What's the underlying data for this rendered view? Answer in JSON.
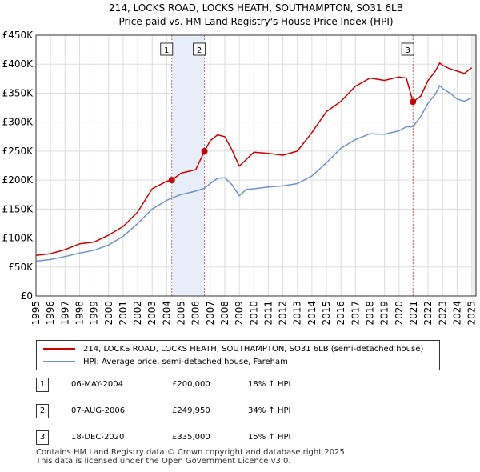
{
  "chart_data": {
    "type": "line",
    "title": "214, LOCKS ROAD, LOCKS HEATH, SOUTHAMPTON, SO31 6LB",
    "subtitle": "Price paid vs. HM Land Registry's House Price Index (HPI)",
    "xlabel": "",
    "ylabel": "",
    "xlim": [
      1995,
      2025.3
    ],
    "ylim": [
      0,
      450000
    ],
    "y_ticks": [
      {
        "value": 0,
        "label": "£0"
      },
      {
        "value": 50000,
        "label": "£50K"
      },
      {
        "value": 100000,
        "label": "£100K"
      },
      {
        "value": 150000,
        "label": "£150K"
      },
      {
        "value": 200000,
        "label": "£200K"
      },
      {
        "value": 250000,
        "label": "£250K"
      },
      {
        "value": 300000,
        "label": "£300K"
      },
      {
        "value": 350000,
        "label": "£350K"
      },
      {
        "value": 400000,
        "label": "£400K"
      },
      {
        "value": 450000,
        "label": "£450K"
      }
    ],
    "x_ticks": [
      "1995",
      "1996",
      "1997",
      "1998",
      "1999",
      "2000",
      "2001",
      "2002",
      "2003",
      "2004",
      "2005",
      "2006",
      "2007",
      "2008",
      "2009",
      "2010",
      "2011",
      "2012",
      "2013",
      "2014",
      "2015",
      "2016",
      "2017",
      "2018",
      "2019",
      "2020",
      "2021",
      "2022",
      "2023",
      "2024",
      "2025"
    ],
    "grid": true,
    "series": [
      {
        "name": "214, LOCKS ROAD, LOCKS HEATH, SOUTHAMPTON, SO31 6LB (semi-detached house)",
        "color": "#cc0000",
        "x": [
          1995.0,
          1996.0,
          1997.0,
          1998.0,
          1999.0,
          2000.0,
          2001.0,
          2002.0,
          2003.0,
          2004.0,
          2004.35,
          2005.0,
          2006.0,
          2006.6,
          2007.0,
          2007.5,
          2008.0,
          2008.5,
          2009.0,
          2009.5,
          2010.0,
          2011.0,
          2012.0,
          2013.0,
          2014.0,
          2015.0,
          2016.0,
          2017.0,
          2018.0,
          2019.0,
          2020.0,
          2020.5,
          2020.96,
          2021.5,
          2022.0,
          2022.5,
          2022.8,
          2023.0,
          2023.5,
          2024.0,
          2024.5,
          2025.0
        ],
        "values": [
          70000,
          73000,
          80000,
          90000,
          93000,
          105000,
          120000,
          145000,
          185000,
          198000,
          200000,
          212000,
          218000,
          249950,
          268000,
          278000,
          275000,
          252000,
          224000,
          236000,
          248000,
          246000,
          243000,
          250000,
          282000,
          318000,
          336000,
          362000,
          376000,
          372000,
          378000,
          376000,
          335000,
          345000,
          372000,
          388000,
          402000,
          398000,
          392000,
          388000,
          384000,
          394000
        ]
      },
      {
        "name": "HPI: Average price, semi-detached house, Fareham",
        "color": "#6b93c6",
        "x": [
          1995.0,
          1996.0,
          1997.0,
          1998.0,
          1999.0,
          2000.0,
          2001.0,
          2002.0,
          2003.0,
          2004.0,
          2004.35,
          2005.0,
          2006.0,
          2006.6,
          2007.0,
          2007.5,
          2008.0,
          2008.5,
          2009.0,
          2009.5,
          2010.0,
          2011.0,
          2012.0,
          2013.0,
          2014.0,
          2015.0,
          2016.0,
          2017.0,
          2018.0,
          2019.0,
          2020.0,
          2020.5,
          2020.96,
          2021.5,
          2022.0,
          2022.5,
          2022.8,
          2023.0,
          2023.5,
          2024.0,
          2024.5,
          2025.0
        ],
        "values": [
          60000,
          63000,
          68000,
          74000,
          79000,
          88000,
          103000,
          125000,
          150000,
          165000,
          169000,
          175000,
          181000,
          186000,
          194000,
          203000,
          204000,
          192000,
          173000,
          184000,
          185000,
          188000,
          190000,
          194000,
          207000,
          230000,
          255000,
          270000,
          280000,
          279000,
          285000,
          292000,
          292000,
          310000,
          333000,
          348000,
          363000,
          358000,
          350000,
          340000,
          336000,
          342000
        ]
      }
    ],
    "markers": [
      {
        "label": "1",
        "x": 2004.35,
        "value": 200000
      },
      {
        "label": "2",
        "x": 2006.6,
        "value": 249950
      },
      {
        "label": "3",
        "x": 2020.96,
        "value": 335000
      }
    ],
    "shaded_ranges": [
      [
        2004.35,
        2006.6
      ]
    ]
  },
  "legend": {
    "property_label": "214, LOCKS ROAD, LOCKS HEATH, SOUTHAMPTON, SO31 6LB (semi-detached house)",
    "hpi_label": "HPI: Average price, semi-detached house, Fareham"
  },
  "transactions": [
    {
      "num": "1",
      "date": "06-MAY-2004",
      "price": "£200,000",
      "hpi": "18% ↑ HPI"
    },
    {
      "num": "2",
      "date": "07-AUG-2006",
      "price": "£249,950",
      "hpi": "34% ↑ HPI"
    },
    {
      "num": "3",
      "date": "18-DEC-2020",
      "price": "£335,000",
      "hpi": "15% ↑ HPI"
    }
  ],
  "footer": {
    "line1": "Contains HM Land Registry data © Crown copyright and database right 2025.",
    "line2": "This data is licensed under the Open Government Licence v3.0."
  },
  "colors": {
    "property": "#cc0000",
    "hpi": "#6b93c6",
    "shade": "#e8eef8",
    "grid": "#dddddd"
  }
}
